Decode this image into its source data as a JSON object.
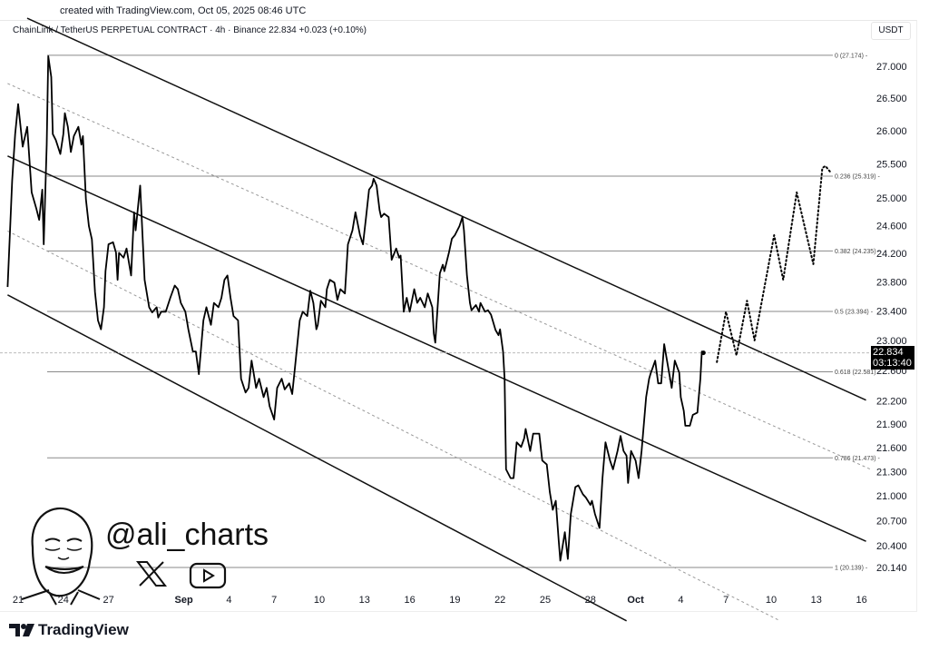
{
  "header": {
    "created": "created with TradingView.com, Oct 05, 2025 08:46 UTC",
    "symbol_line": "ChainLink / TetherUS PERPETUAL CONTRACT · 4h · Binance  22.834  +0.023 (+0.10%)",
    "currency": "USDT"
  },
  "price_tag": {
    "price": "22.834",
    "countdown": "03:13:40"
  },
  "watermark": {
    "handle": "@ali_charts",
    "icons": [
      "x-logo-icon",
      "youtube-icon"
    ]
  },
  "footer": {
    "brand": "TradingView"
  },
  "chart_data": {
    "type": "line",
    "title": "ChainLink / TetherUS PERPETUAL CONTRACT · 4h · Binance",
    "x_unit": "days since Aug 21",
    "x_ticks": [
      {
        "day": 0,
        "label": "21"
      },
      {
        "day": 3,
        "label": "24"
      },
      {
        "day": 6,
        "label": "27"
      },
      {
        "day": 11,
        "label": "Sep",
        "bold": true
      },
      {
        "day": 14,
        "label": "4"
      },
      {
        "day": 17,
        "label": "7"
      },
      {
        "day": 20,
        "label": "10"
      },
      {
        "day": 23,
        "label": "13"
      },
      {
        "day": 26,
        "label": "16"
      },
      {
        "day": 29,
        "label": "19"
      },
      {
        "day": 32,
        "label": "22"
      },
      {
        "day": 35,
        "label": "25"
      },
      {
        "day": 38,
        "label": "28"
      },
      {
        "day": 41,
        "label": "Oct",
        "bold": true
      },
      {
        "day": 44,
        "label": "4"
      },
      {
        "day": 47,
        "label": "7"
      },
      {
        "day": 50,
        "label": "10"
      },
      {
        "day": 53,
        "label": "13"
      },
      {
        "day": 56,
        "label": "16"
      }
    ],
    "y_ticks": [
      "27.000",
      "26.500",
      "26.000",
      "25.500",
      "25.000",
      "24.600",
      "24.200",
      "23.800",
      "23.400",
      "23.000",
      "22.600",
      "22.200",
      "21.900",
      "21.600",
      "21.300",
      "21.000",
      "20.700",
      "20.400",
      "20.140"
    ],
    "y_scale": "log",
    "ylim": [
      19.5,
      27.8
    ],
    "current_price": 22.834,
    "fib_levels": [
      {
        "ratio": "0",
        "price": 27.174,
        "label": "0 (27.174)"
      },
      {
        "ratio": "0.236",
        "price": 25.319,
        "label": "0.236 (25.319)"
      },
      {
        "ratio": "0.382",
        "price": 24.235,
        "label": "0.382 (24.235)"
      },
      {
        "ratio": "0.5",
        "price": 23.394,
        "label": "0.5 (23.394)"
      },
      {
        "ratio": "0.618",
        "price": 22.581,
        "label": "0.618 (22.581)"
      },
      {
        "ratio": "0.786",
        "price": 21.473,
        "label": "0.786 (21.473)"
      },
      {
        "ratio": "1",
        "price": 20.139,
        "label": "1 (20.139)"
      }
    ],
    "channel_lines": [
      {
        "name": "channel-upper",
        "style": "solid",
        "points": [
          [
            0.6,
            27.77
          ],
          [
            56.3,
            22.21
          ]
        ]
      },
      {
        "name": "channel-middle",
        "style": "solid",
        "points": [
          [
            -0.7,
            25.62
          ],
          [
            56.3,
            20.45
          ]
        ]
      },
      {
        "name": "channel-lower",
        "style": "solid",
        "points": [
          [
            -0.7,
            23.62
          ],
          [
            40.4,
            19.52
          ]
        ]
      },
      {
        "name": "channel-upper-mid",
        "style": "dotted",
        "points": [
          [
            -0.7,
            26.73
          ],
          [
            56.6,
            21.33
          ]
        ]
      },
      {
        "name": "channel-lower-mid",
        "style": "dotted",
        "points": [
          [
            -0.7,
            24.52
          ],
          [
            50.6,
            19.52
          ]
        ]
      }
    ],
    "series": [
      {
        "name": "price",
        "style": "solid",
        "points": [
          [
            -0.7,
            23.73
          ],
          [
            -0.4,
            25.25
          ],
          [
            -0.2,
            25.95
          ],
          [
            0,
            26.41
          ],
          [
            0.3,
            25.76
          ],
          [
            0.6,
            26.06
          ],
          [
            0.9,
            25.08
          ],
          [
            1.2,
            24.85
          ],
          [
            1.4,
            24.68
          ],
          [
            1.6,
            25.12
          ],
          [
            1.7,
            24.33
          ],
          [
            1.9,
            25.79
          ],
          [
            2.0,
            27.16
          ],
          [
            2.2,
            26.83
          ],
          [
            2.3,
            25.95
          ],
          [
            2.5,
            25.86
          ],
          [
            2.8,
            25.65
          ],
          [
            3.0,
            25.95
          ],
          [
            3.1,
            26.27
          ],
          [
            3.3,
            26.06
          ],
          [
            3.5,
            25.68
          ],
          [
            3.7,
            25.92
          ],
          [
            4.0,
            26.06
          ],
          [
            4.2,
            25.79
          ],
          [
            4.3,
            25.92
          ],
          [
            4.5,
            24.98
          ],
          [
            4.7,
            24.59
          ],
          [
            4.9,
            24.4
          ],
          [
            5.1,
            23.66
          ],
          [
            5.3,
            23.27
          ],
          [
            5.5,
            23.15
          ],
          [
            5.7,
            23.45
          ],
          [
            5.8,
            23.95
          ],
          [
            6.0,
            24.33
          ],
          [
            6.3,
            24.36
          ],
          [
            6.5,
            24.21
          ],
          [
            6.6,
            23.83
          ],
          [
            6.7,
            24.21
          ],
          [
            7.0,
            24.14
          ],
          [
            7.2,
            24.27
          ],
          [
            7.5,
            23.89
          ],
          [
            7.7,
            24.79
          ],
          [
            7.8,
            24.53
          ],
          [
            8.1,
            25.18
          ],
          [
            8.4,
            23.83
          ],
          [
            8.7,
            23.45
          ],
          [
            8.9,
            23.38
          ],
          [
            9.2,
            23.45
          ],
          [
            9.3,
            23.31
          ],
          [
            9.5,
            23.39
          ],
          [
            9.8,
            23.39
          ],
          [
            10.1,
            23.58
          ],
          [
            10.4,
            23.75
          ],
          [
            10.6,
            23.7
          ],
          [
            10.8,
            23.51
          ],
          [
            11.1,
            23.39
          ],
          [
            11.3,
            23.15
          ],
          [
            11.6,
            22.85
          ],
          [
            11.8,
            22.85
          ],
          [
            12.0,
            22.55
          ],
          [
            12.3,
            23.27
          ],
          [
            12.5,
            23.45
          ],
          [
            12.8,
            23.21
          ],
          [
            13.0,
            23.51
          ],
          [
            13.3,
            23.45
          ],
          [
            13.5,
            23.58
          ],
          [
            13.7,
            23.83
          ],
          [
            13.9,
            23.89
          ],
          [
            14.1,
            23.58
          ],
          [
            14.3,
            23.33
          ],
          [
            14.6,
            23.27
          ],
          [
            14.8,
            22.49
          ],
          [
            15.1,
            22.31
          ],
          [
            15.3,
            22.37
          ],
          [
            15.5,
            22.73
          ],
          [
            15.8,
            22.37
          ],
          [
            16.0,
            22.49
          ],
          [
            16.3,
            22.25
          ],
          [
            16.5,
            22.37
          ],
          [
            16.7,
            22.13
          ],
          [
            17.0,
            21.96
          ],
          [
            17.2,
            22.37
          ],
          [
            17.5,
            22.49
          ],
          [
            17.7,
            22.35
          ],
          [
            18.0,
            22.43
          ],
          [
            18.2,
            22.29
          ],
          [
            18.4,
            22.67
          ],
          [
            18.7,
            23.27
          ],
          [
            18.9,
            23.39
          ],
          [
            19.2,
            23.33
          ],
          [
            19.4,
            23.68
          ],
          [
            19.6,
            23.51
          ],
          [
            19.8,
            23.15
          ],
          [
            19.9,
            23.21
          ],
          [
            20.1,
            23.54
          ],
          [
            20.4,
            23.45
          ],
          [
            20.5,
            23.7
          ],
          [
            20.7,
            23.83
          ],
          [
            21.0,
            23.79
          ],
          [
            21.2,
            23.55
          ],
          [
            21.4,
            23.7
          ],
          [
            21.7,
            23.64
          ],
          [
            21.9,
            24.33
          ],
          [
            22.2,
            24.53
          ],
          [
            22.4,
            24.79
          ],
          [
            22.7,
            24.46
          ],
          [
            22.9,
            24.33
          ],
          [
            23.1,
            24.72
          ],
          [
            23.3,
            25.12
          ],
          [
            23.5,
            25.18
          ],
          [
            23.6,
            25.28
          ],
          [
            23.8,
            25.18
          ],
          [
            24.0,
            24.82
          ],
          [
            24.1,
            24.72
          ],
          [
            24.3,
            24.77
          ],
          [
            24.6,
            24.72
          ],
          [
            24.8,
            24.11
          ],
          [
            25.1,
            24.27
          ],
          [
            25.3,
            24.14
          ],
          [
            25.4,
            24.17
          ],
          [
            25.6,
            23.39
          ],
          [
            25.8,
            23.58
          ],
          [
            26.0,
            23.39
          ],
          [
            26.3,
            23.7
          ],
          [
            26.5,
            23.51
          ],
          [
            26.7,
            23.58
          ],
          [
            27.0,
            23.45
          ],
          [
            27.2,
            23.64
          ],
          [
            27.5,
            23.45
          ],
          [
            27.6,
            23.09
          ],
          [
            27.7,
            22.97
          ],
          [
            28.0,
            23.92
          ],
          [
            28.2,
            24.04
          ],
          [
            28.3,
            23.95
          ],
          [
            28.6,
            24.21
          ],
          [
            28.8,
            24.41
          ],
          [
            29.0,
            24.46
          ],
          [
            29.3,
            24.59
          ],
          [
            29.5,
            24.72
          ],
          [
            29.6,
            24.53
          ],
          [
            29.8,
            23.89
          ],
          [
            30.0,
            23.51
          ],
          [
            30.1,
            23.41
          ],
          [
            30.4,
            23.48
          ],
          [
            30.6,
            23.39
          ],
          [
            30.7,
            23.51
          ],
          [
            31.0,
            23.39
          ],
          [
            31.2,
            23.41
          ],
          [
            31.4,
            23.35
          ],
          [
            31.7,
            23.14
          ],
          [
            31.9,
            23.07
          ],
          [
            32.0,
            23.15
          ],
          [
            32.2,
            22.85
          ],
          [
            32.3,
            22.49
          ],
          [
            32.4,
            21.33
          ],
          [
            32.7,
            21.22
          ],
          [
            32.9,
            21.22
          ],
          [
            33.1,
            21.67
          ],
          [
            33.4,
            21.61
          ],
          [
            33.6,
            21.72
          ],
          [
            33.7,
            21.84
          ],
          [
            34.0,
            21.56
          ],
          [
            34.2,
            21.78
          ],
          [
            34.6,
            21.78
          ],
          [
            34.8,
            21.44
          ],
          [
            35.1,
            21.39
          ],
          [
            35.3,
            21.05
          ],
          [
            35.5,
            20.83
          ],
          [
            35.7,
            20.94
          ],
          [
            35.9,
            20.45
          ],
          [
            36.0,
            20.22
          ],
          [
            36.3,
            20.56
          ],
          [
            36.5,
            20.24
          ],
          [
            36.7,
            20.78
          ],
          [
            37.0,
            21.11
          ],
          [
            37.2,
            21.13
          ],
          [
            37.5,
            21.02
          ],
          [
            37.7,
            20.98
          ],
          [
            38.0,
            20.89
          ],
          [
            38.1,
            20.94
          ],
          [
            38.3,
            20.78
          ],
          [
            38.6,
            20.61
          ],
          [
            38.8,
            21.22
          ],
          [
            39.0,
            21.67
          ],
          [
            39.3,
            21.44
          ],
          [
            39.5,
            21.33
          ],
          [
            39.8,
            21.56
          ],
          [
            40.0,
            21.75
          ],
          [
            40.2,
            21.56
          ],
          [
            40.4,
            21.5
          ],
          [
            40.5,
            21.16
          ],
          [
            40.7,
            21.56
          ],
          [
            41.0,
            21.44
          ],
          [
            41.2,
            21.22
          ],
          [
            41.4,
            21.56
          ],
          [
            41.7,
            22.25
          ],
          [
            41.9,
            22.49
          ],
          [
            42.0,
            22.56
          ],
          [
            42.3,
            22.73
          ],
          [
            42.5,
            22.43
          ],
          [
            42.7,
            22.43
          ],
          [
            42.9,
            22.95
          ],
          [
            43.1,
            22.71
          ],
          [
            43.4,
            22.37
          ],
          [
            43.6,
            22.73
          ],
          [
            43.9,
            22.57
          ],
          [
            44.0,
            22.25
          ],
          [
            44.2,
            22.07
          ],
          [
            44.3,
            21.88
          ],
          [
            44.6,
            21.88
          ],
          [
            44.8,
            22.02
          ],
          [
            45.1,
            22.05
          ],
          [
            45.3,
            22.49
          ],
          [
            45.4,
            22.85
          ],
          [
            45.5,
            22.834
          ]
        ]
      },
      {
        "name": "forecast",
        "style": "dotted",
        "points": [
          [
            46.4,
            22.71
          ],
          [
            47.0,
            23.39
          ],
          [
            47.7,
            22.8
          ],
          [
            48.4,
            23.54
          ],
          [
            48.9,
            23.0
          ],
          [
            50.2,
            24.46
          ],
          [
            50.8,
            23.83
          ],
          [
            51.7,
            25.08
          ],
          [
            52.8,
            24.05
          ],
          [
            53.4,
            25.44
          ],
          [
            53.6,
            25.47
          ],
          [
            53.9,
            25.39
          ]
        ]
      }
    ]
  }
}
